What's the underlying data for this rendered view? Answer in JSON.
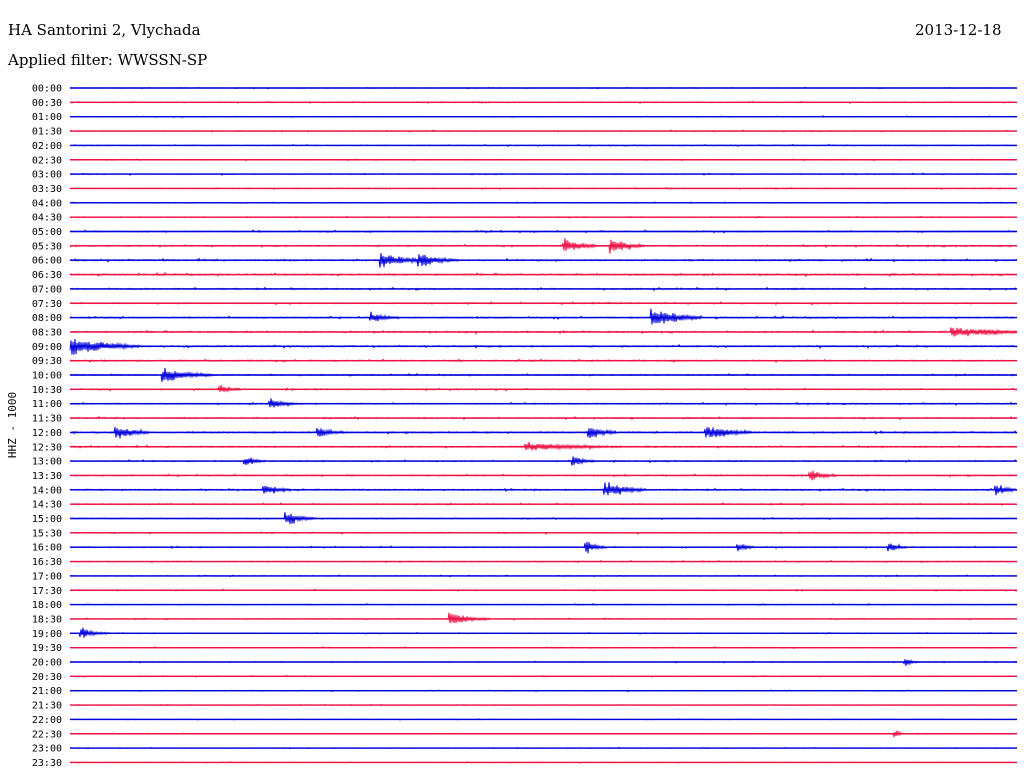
{
  "header": {
    "station": "HA Santorini 2, Vlychada",
    "filter": "Applied filter: WWSSN-SP",
    "date": "2013-12-18"
  },
  "colors": {
    "even_trace": "#0000dd",
    "odd_trace": "#ee1144",
    "text": "#000000"
  },
  "chart_data": {
    "type": "line",
    "title": "HA Santorini 2, Vlychada",
    "subtitle": "Applied filter: WWSSN-SP",
    "ylabel": "HHZ - 1000",
    "xlabel": "",
    "rows": [
      "00:00",
      "00:30",
      "01:00",
      "01:30",
      "02:00",
      "02:30",
      "03:00",
      "03:30",
      "04:00",
      "04:30",
      "05:00",
      "05:30",
      "06:00",
      "06:30",
      "07:00",
      "07:30",
      "08:00",
      "08:30",
      "09:00",
      "09:30",
      "10:00",
      "10:30",
      "11:00",
      "11:30",
      "12:00",
      "12:30",
      "13:00",
      "13:30",
      "14:00",
      "14:30",
      "15:00",
      "15:30",
      "16:00",
      "16:30",
      "17:00",
      "17:30",
      "18:00",
      "18:30",
      "19:00",
      "19:30",
      "20:00",
      "20:30",
      "21:00",
      "21:30",
      "22:00",
      "22:30",
      "23:00",
      "23:30"
    ],
    "row_minutes": 30,
    "noise_level": [
      0.25,
      0.3,
      0.25,
      0.3,
      0.3,
      0.3,
      0.3,
      0.3,
      0.25,
      0.3,
      0.4,
      0.45,
      0.5,
      0.5,
      0.45,
      0.4,
      0.45,
      0.5,
      0.5,
      0.45,
      0.4,
      0.4,
      0.4,
      0.45,
      0.5,
      0.45,
      0.4,
      0.4,
      0.45,
      0.4,
      0.35,
      0.35,
      0.35,
      0.3,
      0.3,
      0.3,
      0.3,
      0.3,
      0.3,
      0.25,
      0.25,
      0.25,
      0.25,
      0.2,
      0.2,
      0.2,
      0.2,
      0.2
    ],
    "events": [
      {
        "row": 11,
        "minute": 15.7,
        "amplitude": 1.6,
        "duration_min": 1.0
      },
      {
        "row": 11,
        "minute": 17.2,
        "amplitude": 1.5,
        "duration_min": 1.0
      },
      {
        "row": 12,
        "minute": 9.9,
        "amplitude": 1.5,
        "duration_min": 1.6
      },
      {
        "row": 12,
        "minute": 11.1,
        "amplitude": 1.2,
        "duration_min": 1.2
      },
      {
        "row": 16,
        "minute": 18.5,
        "amplitude": 2.2,
        "duration_min": 1.5
      },
      {
        "row": 16,
        "minute": 9.6,
        "amplitude": 1.0,
        "duration_min": 0.8
      },
      {
        "row": 17,
        "minute": 28.0,
        "amplitude": 1.0,
        "duration_min": 3.0
      },
      {
        "row": 18,
        "minute": 0.0,
        "amplitude": 2.0,
        "duration_min": 2.2
      },
      {
        "row": 20,
        "minute": 3.0,
        "amplitude": 1.6,
        "duration_min": 1.5
      },
      {
        "row": 21,
        "minute": 4.8,
        "amplitude": 0.8,
        "duration_min": 0.6
      },
      {
        "row": 22,
        "minute": 6.4,
        "amplitude": 1.0,
        "duration_min": 0.8
      },
      {
        "row": 24,
        "minute": 1.5,
        "amplitude": 1.3,
        "duration_min": 1.0
      },
      {
        "row": 24,
        "minute": 7.9,
        "amplitude": 1.0,
        "duration_min": 0.8
      },
      {
        "row": 24,
        "minute": 20.2,
        "amplitude": 1.5,
        "duration_min": 1.4
      },
      {
        "row": 24,
        "minute": 16.5,
        "amplitude": 1.3,
        "duration_min": 0.8
      },
      {
        "row": 25,
        "minute": 14.5,
        "amplitude": 0.8,
        "duration_min": 3.0
      },
      {
        "row": 26,
        "minute": 5.6,
        "amplitude": 1.0,
        "duration_min": 0.6
      },
      {
        "row": 26,
        "minute": 16.0,
        "amplitude": 1.0,
        "duration_min": 0.6
      },
      {
        "row": 27,
        "minute": 23.5,
        "amplitude": 1.2,
        "duration_min": 0.8
      },
      {
        "row": 28,
        "minute": 6.2,
        "amplitude": 1.2,
        "duration_min": 0.8
      },
      {
        "row": 28,
        "minute": 17.0,
        "amplitude": 1.6,
        "duration_min": 1.2
      },
      {
        "row": 28,
        "minute": 29.4,
        "amplitude": 1.2,
        "duration_min": 0.6
      },
      {
        "row": 30,
        "minute": 6.9,
        "amplitude": 1.5,
        "duration_min": 0.8
      },
      {
        "row": 32,
        "minute": 16.4,
        "amplitude": 1.2,
        "duration_min": 0.6
      },
      {
        "row": 32,
        "minute": 21.2,
        "amplitude": 0.9,
        "duration_min": 0.5
      },
      {
        "row": 32,
        "minute": 26.0,
        "amplitude": 0.9,
        "duration_min": 0.5
      },
      {
        "row": 37,
        "minute": 12.1,
        "amplitude": 1.3,
        "duration_min": 1.2
      },
      {
        "row": 38,
        "minute": 0.4,
        "amplitude": 1.1,
        "duration_min": 0.8
      },
      {
        "row": 40,
        "minute": 26.5,
        "amplitude": 0.7,
        "duration_min": 0.4
      },
      {
        "row": 45,
        "minute": 26.2,
        "amplitude": 0.8,
        "duration_min": 0.2
      }
    ]
  }
}
